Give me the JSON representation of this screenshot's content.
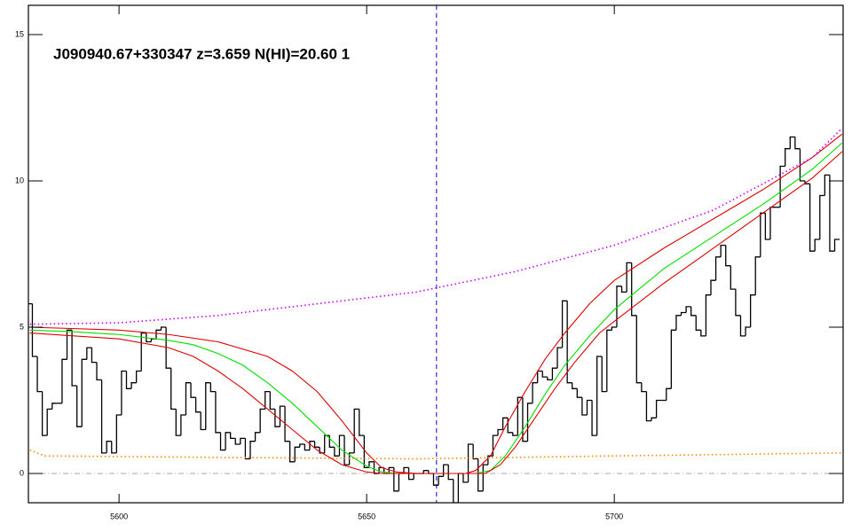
{
  "chart_data": {
    "type": "spectrum",
    "title": "J090940.67+330347 z=3.659 N(HI)=20.60 1",
    "xlim": [
      5581.7,
      5746.2
    ],
    "ylim": [
      -1,
      16
    ],
    "xticks": [
      5600,
      5650,
      5700
    ],
    "yticks": [
      0,
      5,
      10,
      15
    ],
    "vline": 5664.1,
    "vline_color": "#0000ff",
    "hline": 0,
    "hline_color": "#aaaaaa",
    "series": [
      {
        "style": "step",
        "color": "#000000",
        "x": [
          5582,
          5583,
          5584,
          5585,
          5586,
          5587,
          5588,
          5589,
          5590,
          5591,
          5592,
          5593,
          5594,
          5595,
          5596,
          5597,
          5598,
          5599,
          5600,
          5601,
          5602,
          5603,
          5604,
          5605,
          5606,
          5607,
          5608,
          5609,
          5610,
          5611,
          5612,
          5613,
          5614,
          5615,
          5616,
          5617,
          5618,
          5619,
          5620,
          5621,
          5622,
          5623,
          5624,
          5625,
          5626,
          5627,
          5628,
          5629,
          5630,
          5631,
          5632,
          5633,
          5634,
          5635,
          5636,
          5637,
          5638,
          5639,
          5640,
          5641,
          5642,
          5643,
          5644,
          5645,
          5646,
          5647,
          5648,
          5649,
          5650,
          5651,
          5652,
          5653,
          5654,
          5655,
          5656,
          5657,
          5658,
          5659,
          5660,
          5661,
          5662,
          5663,
          5664,
          5665,
          5666,
          5667,
          5668,
          5669,
          5670,
          5671,
          5672,
          5673,
          5674,
          5675,
          5676,
          5677,
          5678,
          5679,
          5680,
          5681,
          5682,
          5683,
          5684,
          5685,
          5686,
          5687,
          5688,
          5689,
          5690,
          5691,
          5692,
          5693,
          5694,
          5695,
          5696,
          5697,
          5698,
          5699,
          5700,
          5701,
          5702,
          5703,
          5704,
          5705,
          5706,
          5707,
          5708,
          5709,
          5710,
          5711,
          5712,
          5713,
          5714,
          5715,
          5716,
          5717,
          5718,
          5719,
          5720,
          5721,
          5722,
          5723,
          5724,
          5725,
          5726,
          5727,
          5728,
          5729,
          5730,
          5731,
          5732,
          5733,
          5734,
          5735,
          5736,
          5737,
          5738,
          5739,
          5740,
          5741,
          5742,
          5743,
          5744,
          5745
        ],
        "values": [
          5.8,
          4.0,
          2.8,
          1.3,
          2.2,
          2.4,
          2.4,
          3.9,
          4.9,
          3.0,
          1.6,
          3.9,
          4.3,
          3.8,
          3.2,
          0.7,
          1.1,
          0.7,
          2.0,
          3.5,
          2.9,
          3.1,
          3.5,
          4.8,
          4.5,
          4.6,
          4.9,
          5.0,
          3.6,
          2.2,
          1.3,
          2.0,
          3.1,
          2.6,
          2.1,
          1.5,
          3.1,
          2.8,
          1.4,
          0.8,
          1.4,
          1.2,
          1.0,
          1.2,
          0.5,
          1.1,
          1.4,
          2.2,
          2.8,
          2.2,
          1.6,
          2.3,
          1.1,
          0.4,
          0.9,
          1.0,
          0.8,
          1.1,
          0.9,
          0.7,
          1.3,
          0.9,
          0.6,
          1.3,
          0.3,
          0.7,
          2.2,
          1.3,
          0.2,
          0.4,
          0.0,
          0.2,
          0.0,
          0.2,
          -0.6,
          0.0,
          0.2,
          -0.2,
          0.0,
          0.0,
          0.1,
          0.0,
          -0.4,
          -0.1,
          0.3,
          -0.2,
          -1.0,
          0.0,
          -0.3,
          1.0,
          0.5,
          -0.6,
          0.3,
          0.6,
          1.3,
          1.5,
          1.9,
          1.4,
          1.3,
          2.6,
          1.1,
          2.4,
          3.1,
          3.5,
          3.3,
          3.2,
          3.6,
          4.3,
          5.9,
          3.1,
          2.9,
          2.6,
          2.0,
          2.5,
          1.3,
          4.0,
          2.8,
          4.9,
          5.0,
          6.4,
          6.2,
          7.2,
          5.4,
          3.1,
          2.8,
          1.8,
          1.9,
          2.5,
          2.5,
          2.9,
          4.9,
          5.4,
          5.5,
          5.7,
          5.4,
          4.9,
          4.7,
          6.1,
          6.6,
          7.4,
          7.8,
          7.1,
          6.3,
          5.4,
          4.7,
          5.0,
          6.1,
          7.4,
          8.9,
          8.0,
          9.1,
          9.1,
          10.5,
          11.1,
          11.5,
          11.1,
          10.0,
          9.9,
          7.6,
          8.0,
          9.5,
          10.2,
          7.6,
          8.0
        ]
      },
      {
        "style": "solid",
        "color": "#00e000",
        "x": [
          5582,
          5590,
          5600,
          5610,
          5615,
          5620,
          5625,
          5630,
          5635,
          5640,
          5645,
          5650,
          5653,
          5656,
          5672,
          5675,
          5678,
          5682,
          5686,
          5690,
          5695,
          5700,
          5705,
          5710,
          5720,
          5730,
          5740,
          5746
        ],
        "values": [
          4.9,
          4.85,
          4.75,
          4.55,
          4.4,
          4.1,
          3.7,
          3.1,
          2.4,
          1.6,
          0.8,
          0.25,
          0.05,
          0.0,
          0.0,
          0.1,
          0.6,
          1.6,
          2.7,
          3.7,
          4.7,
          5.6,
          6.3,
          7.0,
          8.1,
          9.2,
          10.4,
          11.3
        ]
      },
      {
        "style": "solid",
        "color": "#e00000",
        "x": [
          5582,
          5600,
          5610,
          5620,
          5630,
          5635,
          5640,
          5645,
          5650,
          5653,
          5656,
          5660,
          5670,
          5672,
          5675,
          5678,
          5682,
          5686,
          5690,
          5695,
          5700,
          5710,
          5720,
          5730,
          5740,
          5746
        ],
        "values": [
          5.0,
          4.9,
          4.75,
          4.5,
          4.0,
          3.5,
          2.8,
          1.8,
          0.7,
          0.2,
          0.05,
          0.0,
          0.0,
          0.1,
          0.6,
          1.6,
          2.8,
          3.9,
          4.8,
          5.8,
          6.6,
          7.7,
          8.7,
          9.7,
          10.8,
          11.6
        ]
      },
      {
        "style": "solid",
        "color": "#e00000",
        "x": [
          5582,
          5600,
          5610,
          5615,
          5620,
          5625,
          5630,
          5635,
          5640,
          5645,
          5650,
          5653,
          5674,
          5677,
          5680,
          5684,
          5688,
          5692,
          5697,
          5700,
          5710,
          5720,
          5730,
          5740,
          5746
        ],
        "values": [
          4.8,
          4.6,
          4.3,
          4.0,
          3.5,
          2.9,
          2.2,
          1.5,
          0.8,
          0.3,
          0.05,
          0.0,
          0.0,
          0.3,
          0.9,
          1.9,
          2.9,
          3.8,
          4.8,
          5.2,
          6.5,
          7.7,
          8.9,
          10.1,
          11.0
        ]
      },
      {
        "style": "dotted",
        "color": "#cc00ff",
        "x": [
          5582,
          5600,
          5620,
          5640,
          5660,
          5680,
          5700,
          5720,
          5740,
          5746
        ],
        "values": [
          5.1,
          5.15,
          5.4,
          5.8,
          6.2,
          6.9,
          7.8,
          9.0,
          10.8,
          11.8
        ]
      },
      {
        "style": "dotted",
        "color": "#ff8800",
        "x": [
          5582,
          5585,
          5620,
          5660,
          5700,
          5746
        ],
        "values": [
          0.8,
          0.6,
          0.55,
          0.5,
          0.6,
          0.7
        ]
      }
    ]
  }
}
